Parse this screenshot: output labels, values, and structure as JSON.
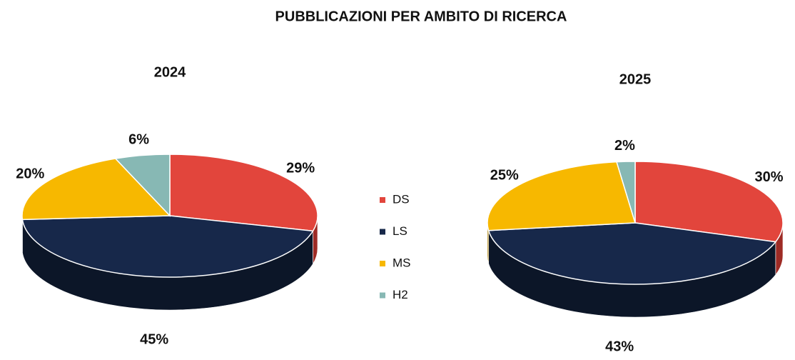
{
  "title": "PUBBLICAZIONI PER AMBITO DI RICERCA",
  "categories": [
    "DS",
    "LS",
    "MS",
    "H2"
  ],
  "colors": [
    "#e2453c",
    "#17284a",
    "#f7b800",
    "#87b8b4"
  ],
  "side_colors": [
    "#9e2b25",
    "#0c1628",
    "#a87d00",
    "#5a807d"
  ],
  "chart_data": [
    {
      "type": "pie",
      "title": "2024",
      "values": [
        29,
        45,
        20,
        6
      ],
      "value_labels": [
        "29%",
        "45%",
        "20%",
        "6%"
      ]
    },
    {
      "type": "pie",
      "title": "2025",
      "values": [
        30,
        43,
        25,
        2
      ],
      "value_labels": [
        "30%",
        "43%",
        "25%",
        "2%"
      ]
    }
  ]
}
